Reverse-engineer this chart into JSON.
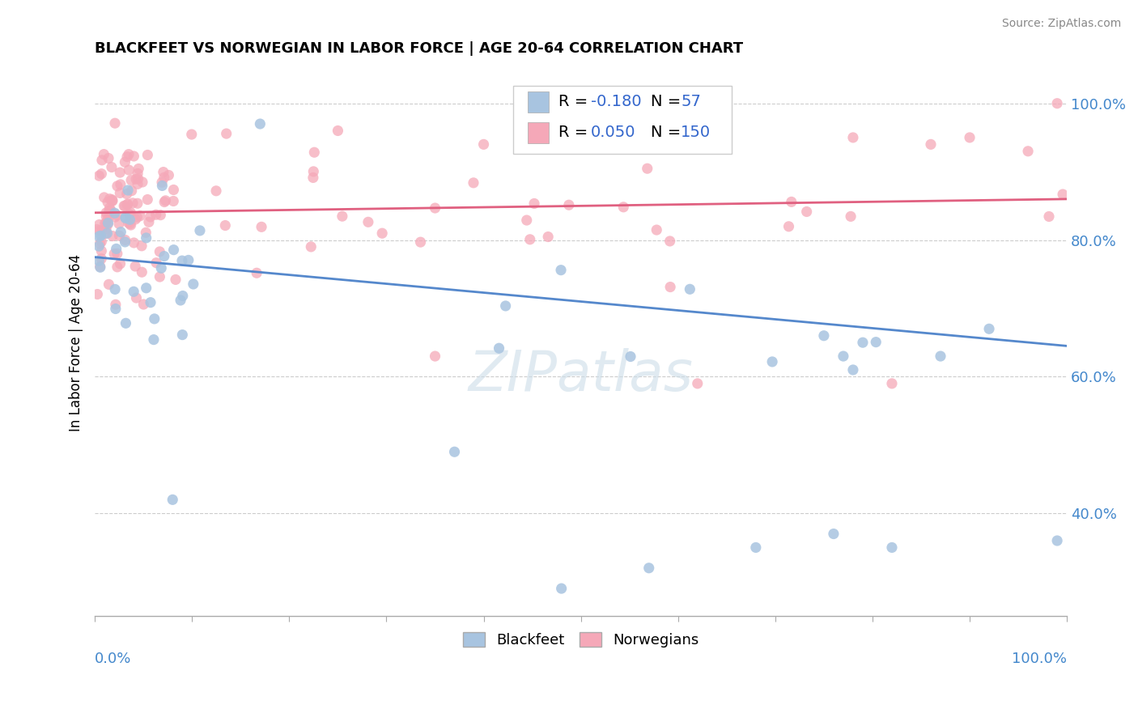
{
  "title": "BLACKFEET VS NORWEGIAN IN LABOR FORCE | AGE 20-64 CORRELATION CHART",
  "source": "Source: ZipAtlas.com",
  "ylabel": "In Labor Force | Age 20-64",
  "xlim": [
    0.0,
    1.0
  ],
  "ylim": [
    0.25,
    1.05
  ],
  "yticks": [
    0.4,
    0.6,
    0.8,
    1.0
  ],
  "ytick_labels": [
    "40.0%",
    "60.0%",
    "80.0%",
    "100.0%"
  ],
  "blackfeet_R": -0.18,
  "blackfeet_N": 57,
  "norwegian_R": 0.05,
  "norwegian_N": 150,
  "blackfeet_color": "#a8c4e0",
  "norwegian_color": "#f5a8b8",
  "blackfeet_line_color": "#5588cc",
  "norwegian_line_color": "#e06080",
  "legend_R_color": "#3366cc",
  "watermark": "ZIPatlas",
  "bf_line_x0": 0.0,
  "bf_line_x1": 1.0,
  "bf_line_y0": 0.775,
  "bf_line_y1": 0.645,
  "no_line_x0": 0.0,
  "no_line_x1": 1.0,
  "no_line_y0": 0.84,
  "no_line_y1": 0.86
}
